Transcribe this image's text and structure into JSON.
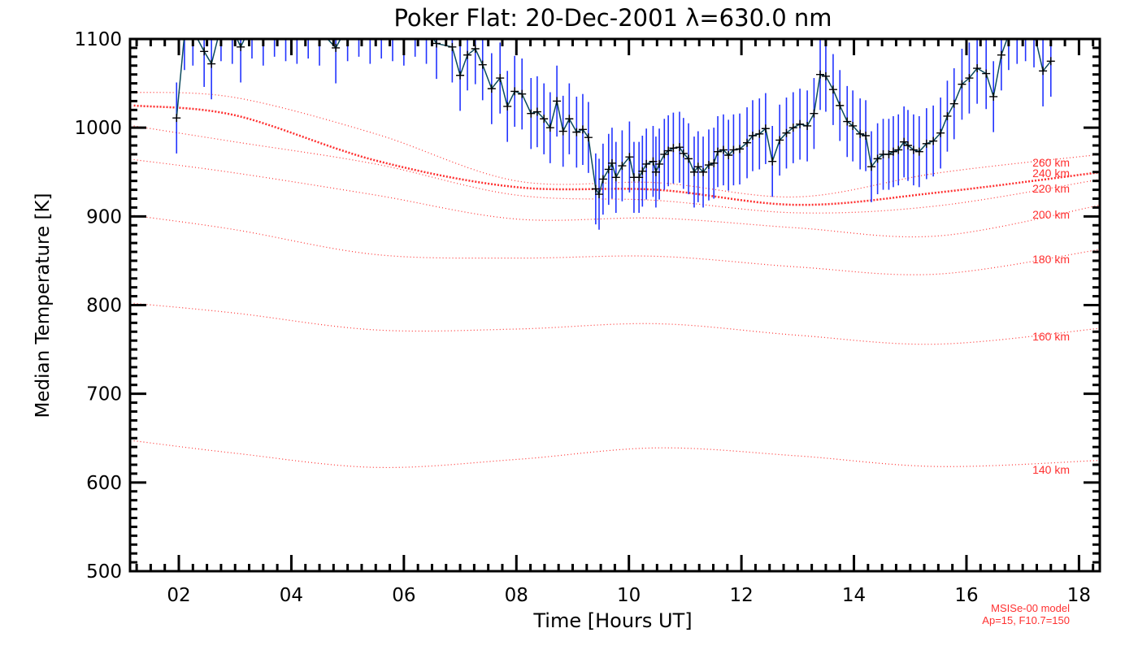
{
  "chart_data": {
    "type": "line",
    "title": "Poker Flat: 20-Dec-2001 λ=630.0 nm",
    "xlabel": "Time [Hours UT]",
    "ylabel": "Median Temperature [K]",
    "xlim": [
      1.133,
      18.37
    ],
    "ylim": [
      500,
      1100
    ],
    "x_ticks": [
      2,
      4,
      6,
      8,
      10,
      12,
      14,
      16,
      18
    ],
    "x_tick_labels": [
      "02",
      "04",
      "06",
      "08",
      "10",
      "12",
      "14",
      "16",
      "18"
    ],
    "y_ticks": [
      500,
      600,
      700,
      800,
      900,
      1000,
      1100
    ],
    "y_tick_labels": [
      "500",
      "600",
      "700",
      "800",
      "900",
      "1000",
      "1100"
    ],
    "grid": false,
    "colors": {
      "line": "#0b4a5c",
      "errorbar": "#2233ff",
      "marker": "#000000",
      "model": "#ff3030"
    },
    "measured": {
      "name": "Median temperature",
      "typical_error_K": 40,
      "x": [
        1.96,
        2.1,
        2.25,
        2.45,
        2.58,
        2.75,
        2.95,
        3.1,
        3.3,
        3.5,
        3.7,
        3.9,
        4.1,
        4.3,
        4.5,
        4.79,
        5.0,
        5.2,
        5.4,
        5.6,
        5.8,
        6.0,
        6.2,
        6.4,
        6.58,
        6.86,
        7.0,
        7.13,
        7.27,
        7.4,
        7.56,
        7.71,
        7.84,
        7.97,
        8.1,
        8.26,
        8.37,
        8.49,
        8.6,
        8.72,
        8.83,
        8.94,
        9.07,
        9.18,
        9.28,
        9.41,
        9.47,
        9.54,
        9.64,
        9.7,
        9.77,
        9.88,
        10.01,
        10.09,
        10.18,
        10.24,
        10.31,
        10.43,
        10.48,
        10.54,
        10.63,
        10.7,
        10.79,
        10.9,
        10.97,
        11.06,
        11.16,
        11.23,
        11.32,
        11.42,
        11.51,
        11.58,
        11.68,
        11.77,
        11.86,
        11.97,
        12.1,
        12.2,
        12.32,
        12.43,
        12.55,
        12.68,
        12.8,
        12.92,
        13.04,
        13.17,
        13.29,
        13.4,
        13.5,
        13.63,
        13.75,
        13.88,
        13.98,
        14.11,
        14.21,
        14.31,
        14.42,
        14.52,
        14.62,
        14.7,
        14.79,
        14.89,
        14.96,
        15.06,
        15.16,
        15.29,
        15.41,
        15.54,
        15.66,
        15.78,
        15.92,
        16.05,
        16.19,
        16.35,
        16.48,
        16.62,
        16.75,
        16.9,
        17.05,
        17.2,
        17.36,
        17.5
      ],
      "y": [
        1011,
        1105,
        1110,
        1086,
        1072,
        1115,
        1112,
        1091,
        1118,
        1110,
        1120,
        1115,
        1112,
        1118,
        1110,
        1090,
        1115,
        1120,
        1112,
        1118,
        1115,
        1110,
        1120,
        1112,
        1095,
        1091,
        1059,
        1082,
        1089,
        1071,
        1044,
        1056,
        1024,
        1041,
        1038,
        1016,
        1018,
        1010,
        1000,
        1030,
        996,
        1010,
        995,
        998,
        989,
        931,
        925,
        942,
        953,
        960,
        944,
        957,
        967,
        944,
        944,
        951,
        959,
        962,
        950,
        959,
        970,
        974,
        977,
        978,
        971,
        965,
        950,
        956,
        950,
        958,
        960,
        973,
        975,
        969,
        975,
        976,
        983,
        991,
        993,
        999,
        962,
        986,
        994,
        1000,
        1004,
        1002,
        1016,
        1060,
        1058,
        1043,
        1025,
        1007,
        1002,
        993,
        991,
        956,
        965,
        970,
        970,
        973,
        975,
        984,
        980,
        975,
        973,
        982,
        985,
        994,
        1013,
        1027,
        1049,
        1056,
        1067,
        1061,
        1035,
        1082,
        1105,
        1112,
        1115,
        1108,
        1064,
        1075
      ]
    },
    "model_curves": {
      "x": [
        1.2,
        3.0,
        5.5,
        8.0,
        10.5,
        13.0,
        15.5,
        18.4
      ],
      "series": [
        {
          "name": "260 km",
          "label": "260 km",
          "values": [
            1040,
            1034,
            993,
            940,
            938,
            922,
            949,
            970
          ]
        },
        {
          "name": "240 km",
          "label": "240 km",
          "values": [
            1025,
            1014,
            963,
            933,
            930,
            913,
            927,
            950
          ]
        },
        {
          "name": "220 km",
          "label": "220 km",
          "values": [
            1002,
            984,
            959,
            924,
            918,
            904,
            912,
            942
          ]
        },
        {
          "name": "200 km",
          "label": "200 km",
          "values": [
            964,
            949,
            924,
            897,
            898,
            887,
            878,
            913
          ]
        },
        {
          "name": "180 km",
          "label": "180 km",
          "values": [
            901,
            885,
            857,
            853,
            855,
            843,
            835,
            863
          ]
        },
        {
          "name": "160 km",
          "label": "160 km",
          "values": [
            802,
            791,
            772,
            773,
            779,
            766,
            756,
            774
          ]
        },
        {
          "name": "140 km",
          "label": "140 km",
          "values": [
            647,
            633,
            617,
            626,
            639,
            630,
            618,
            625
          ]
        }
      ]
    },
    "annotations": [
      "MSISe-00 model",
      "Ap=15, F10.7=150"
    ]
  }
}
